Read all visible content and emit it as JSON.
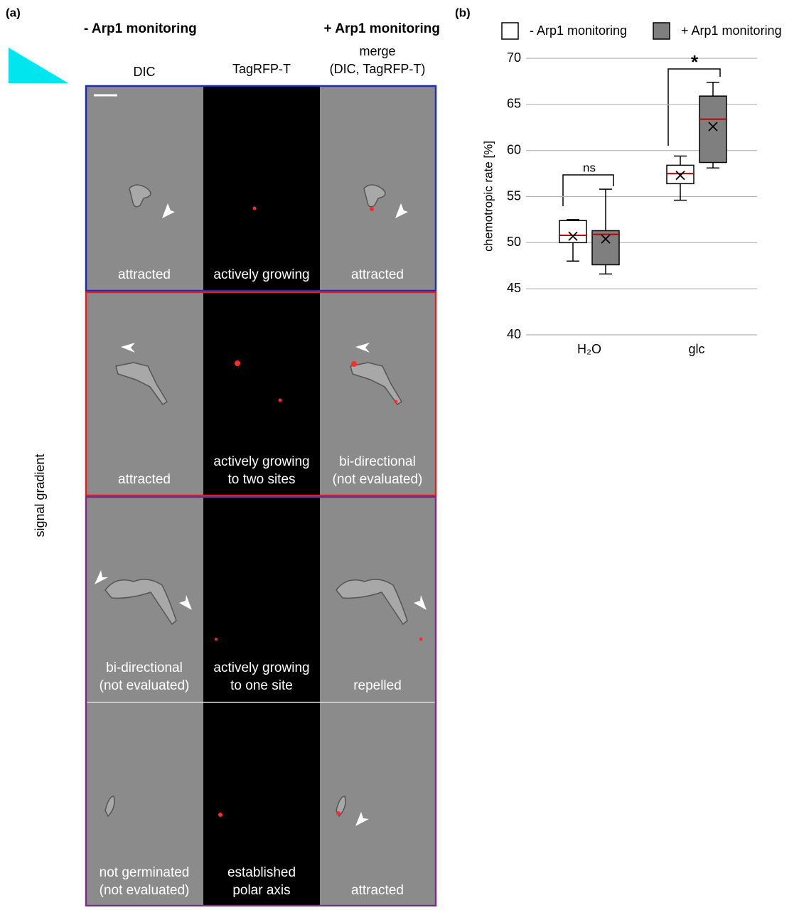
{
  "panel_a": {
    "label": "(a)",
    "header_minus": "- Arp1 monitoring",
    "header_plus": "+ Arp1 monitoring",
    "columns": [
      [
        "DIC"
      ],
      [
        "TagRFP-T"
      ],
      [
        "merge",
        "(DIC, TagRFP-T)"
      ]
    ],
    "side_label": "signal gradient",
    "rows": [
      [
        [
          "attracted"
        ],
        [
          "actively growing"
        ],
        [
          "attracted"
        ]
      ],
      [
        [
          "attracted"
        ],
        [
          "actively growing",
          "to two sites"
        ],
        [
          "bi-directional",
          "(not evaluated)"
        ]
      ],
      [
        [
          "bi-directional",
          "(not evaluated)"
        ],
        [
          "actively growing",
          "to one site"
        ],
        [
          "repelled"
        ]
      ],
      [
        [
          "not germinated",
          "(not evaluated)"
        ],
        [
          "established",
          "polar axis"
        ],
        [
          "attracted"
        ]
      ]
    ]
  },
  "chart_data": {
    "type": "box",
    "label": "(b)",
    "y_label": "chemotropic rate [%]",
    "categories": [
      "H₂O",
      "glc"
    ],
    "series": [
      {
        "name": "- Arp1 monitoring",
        "color": "#ffffff",
        "min": [
          48.0,
          54.6
        ],
        "q1": [
          50.0,
          56.4
        ],
        "median": [
          50.8,
          57.5
        ],
        "q3": [
          52.4,
          58.4
        ],
        "max": [
          52.5,
          59.4
        ],
        "mean": [
          50.7,
          57.3
        ]
      },
      {
        "name": "+ Arp1 monitoring",
        "color": "#7f7f7f",
        "min": [
          46.6,
          58.1
        ],
        "q1": [
          47.6,
          58.7
        ],
        "median": [
          50.9,
          63.4
        ],
        "q3": [
          51.3,
          65.9
        ],
        "max": [
          55.8,
          67.4
        ],
        "mean": [
          50.4,
          62.6
        ]
      }
    ],
    "median_color": "#c00000",
    "annotations": [
      "ns",
      "*"
    ],
    "ylim": [
      40,
      70
    ],
    "yticks": [
      40,
      45,
      50,
      55,
      60,
      65,
      70
    ],
    "grid": true
  }
}
